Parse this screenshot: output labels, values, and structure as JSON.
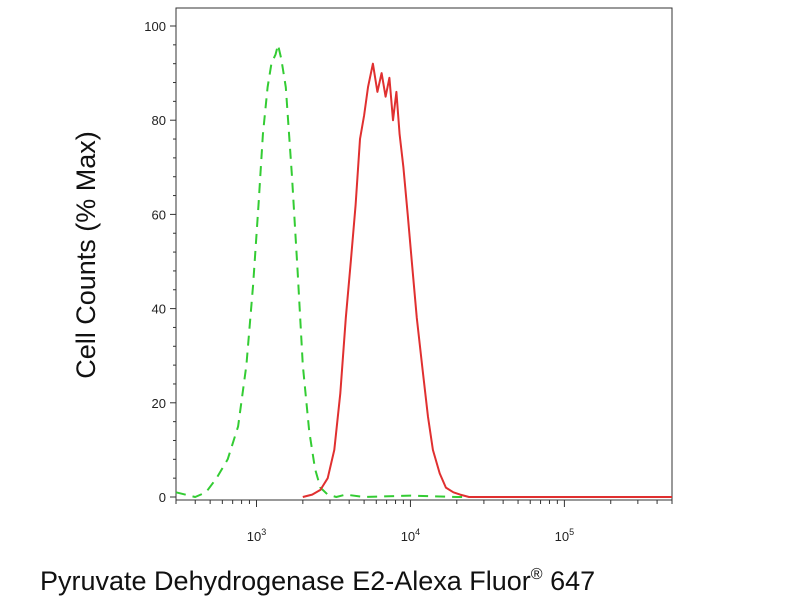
{
  "chart_data": {
    "type": "line",
    "title": "",
    "xlabel": "Pyruvate Dehydrogenase E2-Alexa Fluor",
    "xlabel_superscript": "®",
    "xlabel_suffix": " 647",
    "ylabel": "Cell Counts (% Max)",
    "xscale": "log",
    "xlim": [
      300,
      500000
    ],
    "ylim": [
      0,
      100
    ],
    "x_ticks": [
      {
        "value": 1000,
        "base": "10",
        "exp": "3"
      },
      {
        "value": 10000,
        "base": "10",
        "exp": "4"
      },
      {
        "value": 100000,
        "base": "10",
        "exp": "5"
      }
    ],
    "y_ticks": [
      {
        "value": 0,
        "label": "0"
      },
      {
        "value": 20,
        "label": "20"
      },
      {
        "value": 40,
        "label": "40"
      },
      {
        "value": 60,
        "label": "60"
      },
      {
        "value": 80,
        "label": "80"
      },
      {
        "value": 100,
        "label": "100"
      }
    ],
    "grid": false,
    "legend": false,
    "series": [
      {
        "style": "dashed",
        "color": "#33cc33",
        "x": [
          300,
          400,
          470,
          550,
          650,
          760,
          860,
          950,
          1030,
          1100,
          1180,
          1250,
          1330,
          1380,
          1450,
          1550,
          1700,
          1850,
          2000,
          2200,
          2400,
          2600,
          2900,
          3300,
          3800,
          5000,
          10000,
          20000,
          30000
        ],
        "y": [
          1,
          0,
          1,
          4,
          8,
          15,
          28,
          45,
          62,
          77,
          87,
          92,
          94,
          96,
          93,
          87,
          68,
          48,
          28,
          14,
          6,
          2,
          0.5,
          0,
          0.5,
          0,
          0.3,
          0,
          0
        ]
      },
      {
        "style": "solid",
        "color": "#e03030",
        "x": [
          2000,
          2300,
          2600,
          2900,
          3200,
          3500,
          3800,
          4100,
          4400,
          4700,
          5000,
          5300,
          5700,
          6100,
          6500,
          6900,
          7300,
          7700,
          8100,
          8500,
          9000,
          9600,
          10200,
          11000,
          12000,
          13000,
          14000,
          15500,
          17000,
          19000,
          21000,
          24000,
          28000,
          35000,
          60000,
          100000,
          200000,
          500000
        ],
        "y": [
          0,
          0.5,
          1.5,
          4,
          10,
          22,
          38,
          50,
          62,
          76,
          81,
          87,
          92,
          86,
          90,
          85,
          89,
          80,
          86,
          77,
          70,
          60,
          50,
          38,
          27,
          17,
          10,
          5,
          2,
          1,
          0.5,
          0,
          0,
          0,
          0,
          0,
          0,
          0
        ]
      }
    ]
  }
}
